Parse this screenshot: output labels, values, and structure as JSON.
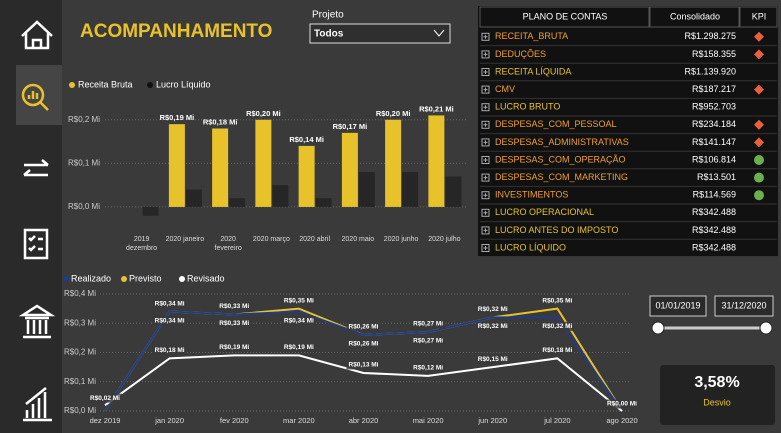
{
  "title": "ACOMPANHAMENTO",
  "filter": {
    "label": "Projeto",
    "value": "Todos"
  },
  "chart_data": [
    {
      "type": "bar",
      "categories": [
        "2019 dezembro",
        "2020 janeiro",
        "2020 fevereiro",
        "2020 março",
        "2020 abril",
        "2020 maio",
        "2020 junho",
        "2020 julho"
      ],
      "series": [
        {
          "name": "Receita Bruta",
          "color": "#e8c22a",
          "values": [
            0,
            0.19,
            0.18,
            0.2,
            0.14,
            0.17,
            0.2,
            0.21
          ],
          "value_labels": [
            null,
            "R$0,19 Mi",
            "R$0,18 Mi",
            "R$0,20 Mi",
            "R$0,14 Mi",
            "R$0,17 Mi",
            "R$0,20 Mi",
            "R$0,21 Mi"
          ]
        },
        {
          "name": "Lucro Líquido",
          "color": "#262626",
          "values": [
            -0.02,
            0.04,
            0.02,
            0.05,
            0.02,
            0.08,
            0.08,
            0.07
          ]
        }
      ],
      "ylim": [
        -0.03,
        0.25
      ],
      "yticks": [
        {
          "value": 0,
          "label": "R$0,0 Mi"
        },
        {
          "value": 0.1,
          "label": "R$0,1 Mi"
        },
        {
          "value": 0.2,
          "label": "R$0,2 Mi"
        }
      ],
      "grid": true
    },
    {
      "type": "line",
      "categories": [
        "dez 2019",
        "jan 2020",
        "fev 2020",
        "mar 2020",
        "abr 2020",
        "mai 2020",
        "jun 2020",
        "jul 2020",
        "ago 2020"
      ],
      "series": [
        {
          "name": "Realizado",
          "color": "#1f3c88",
          "values": [
            0,
            0.34,
            0.33,
            0.34,
            0.26,
            0.27,
            0.32,
            0.32,
            0
          ],
          "value_labels": [
            null,
            "R$0,34 Mi",
            "R$0,33 Mi",
            "R$0,34 Mi",
            "R$0,26 Mi",
            "R$0,27 Mi",
            "R$0,32 Mi",
            "R$0,32 Mi",
            null
          ]
        },
        {
          "name": "Previsto",
          "color": "#e8c22a",
          "values": [
            0,
            0.34,
            0.33,
            0.35,
            0.26,
            0.27,
            0.32,
            0.35,
            0
          ],
          "value_labels": [
            null,
            "R$0,34 Mi",
            "R$0,33 Mi",
            "R$0,35 Mi",
            "R$0,26 Mi",
            "R$0,27 Mi",
            "R$0,32 Mi",
            "R$0,35 Mi",
            null
          ]
        },
        {
          "name": "Revisado",
          "color": "#ffffff",
          "values": [
            0.02,
            0.18,
            0.19,
            0.19,
            0.13,
            0.12,
            0.15,
            0.18,
            0
          ],
          "value_labels": [
            "R$0,02 Mi",
            "R$0,18 Mi",
            "R$0,19 Mi",
            "R$0,19 Mi",
            "R$0,13 Mi",
            "R$0,12 Mi",
            "R$0,15 Mi",
            "R$0,18 Mi",
            "R$0,00 Mi"
          ]
        }
      ],
      "ylim": [
        0,
        0.4
      ],
      "yticks": [
        {
          "value": 0,
          "label": "R$0,0 Mi"
        },
        {
          "value": 0.1,
          "label": "R$0,1 Mi"
        },
        {
          "value": 0.2,
          "label": "R$0,2 Mi"
        },
        {
          "value": 0.3,
          "label": "R$0,3 Mi"
        },
        {
          "value": 0.4,
          "label": "R$0,4 Mi"
        }
      ],
      "grid": true
    }
  ],
  "table": {
    "columns": [
      "PLANO DE CONTAS",
      "Consolidado",
      "KPI"
    ],
    "rows": [
      {
        "name": "RECEITA_BRUTA",
        "value": "R$1.298.275",
        "color": "#f0a030",
        "kpi": "red"
      },
      {
        "name": "DEDUÇÕES",
        "value": "R$158.355",
        "color": "#f0a030",
        "kpi": "red"
      },
      {
        "name": "RECEITA LÍQUIDA",
        "value": "R$1.139.920",
        "color": "#e8c22a",
        "kpi": null
      },
      {
        "name": "CMV",
        "value": "R$187.217",
        "color": "#f0a030",
        "kpi": "red"
      },
      {
        "name": "LUCRO BRUTO",
        "value": "R$952.703",
        "color": "#e8c22a",
        "kpi": null
      },
      {
        "name": "DESPESAS_COM_PESSOAL",
        "value": "R$234.184",
        "color": "#f0a030",
        "kpi": "red"
      },
      {
        "name": "DESPESAS_ADMINISTRATIVAS",
        "value": "R$141.147",
        "color": "#f0a030",
        "kpi": "red"
      },
      {
        "name": "DESPESAS_COM_OPERAÇÃO",
        "value": "R$106.814",
        "color": "#f0a030",
        "kpi": "green"
      },
      {
        "name": "DESPESAS_COM_MARKETING",
        "value": "R$13.501",
        "color": "#f0a030",
        "kpi": "green"
      },
      {
        "name": "INVESTIMENTOS",
        "value": "R$114.569",
        "color": "#f0a030",
        "kpi": "green"
      },
      {
        "name": "LUCRO OPERACIONAL",
        "value": "R$342.488",
        "color": "#e8c22a",
        "kpi": null
      },
      {
        "name": "LUCRO ANTES DO IMPOSTO",
        "value": "R$342.488",
        "color": "#e8c22a",
        "kpi": null
      },
      {
        "name": "LUCRO LÍQUIDO",
        "value": "R$342.488",
        "color": "#e8c22a",
        "kpi": null
      }
    ]
  },
  "date_range": {
    "start": "01/01/2019",
    "end": "31/12/2020"
  },
  "kpi_card": {
    "value": "3,58%",
    "label": "Desvio"
  }
}
